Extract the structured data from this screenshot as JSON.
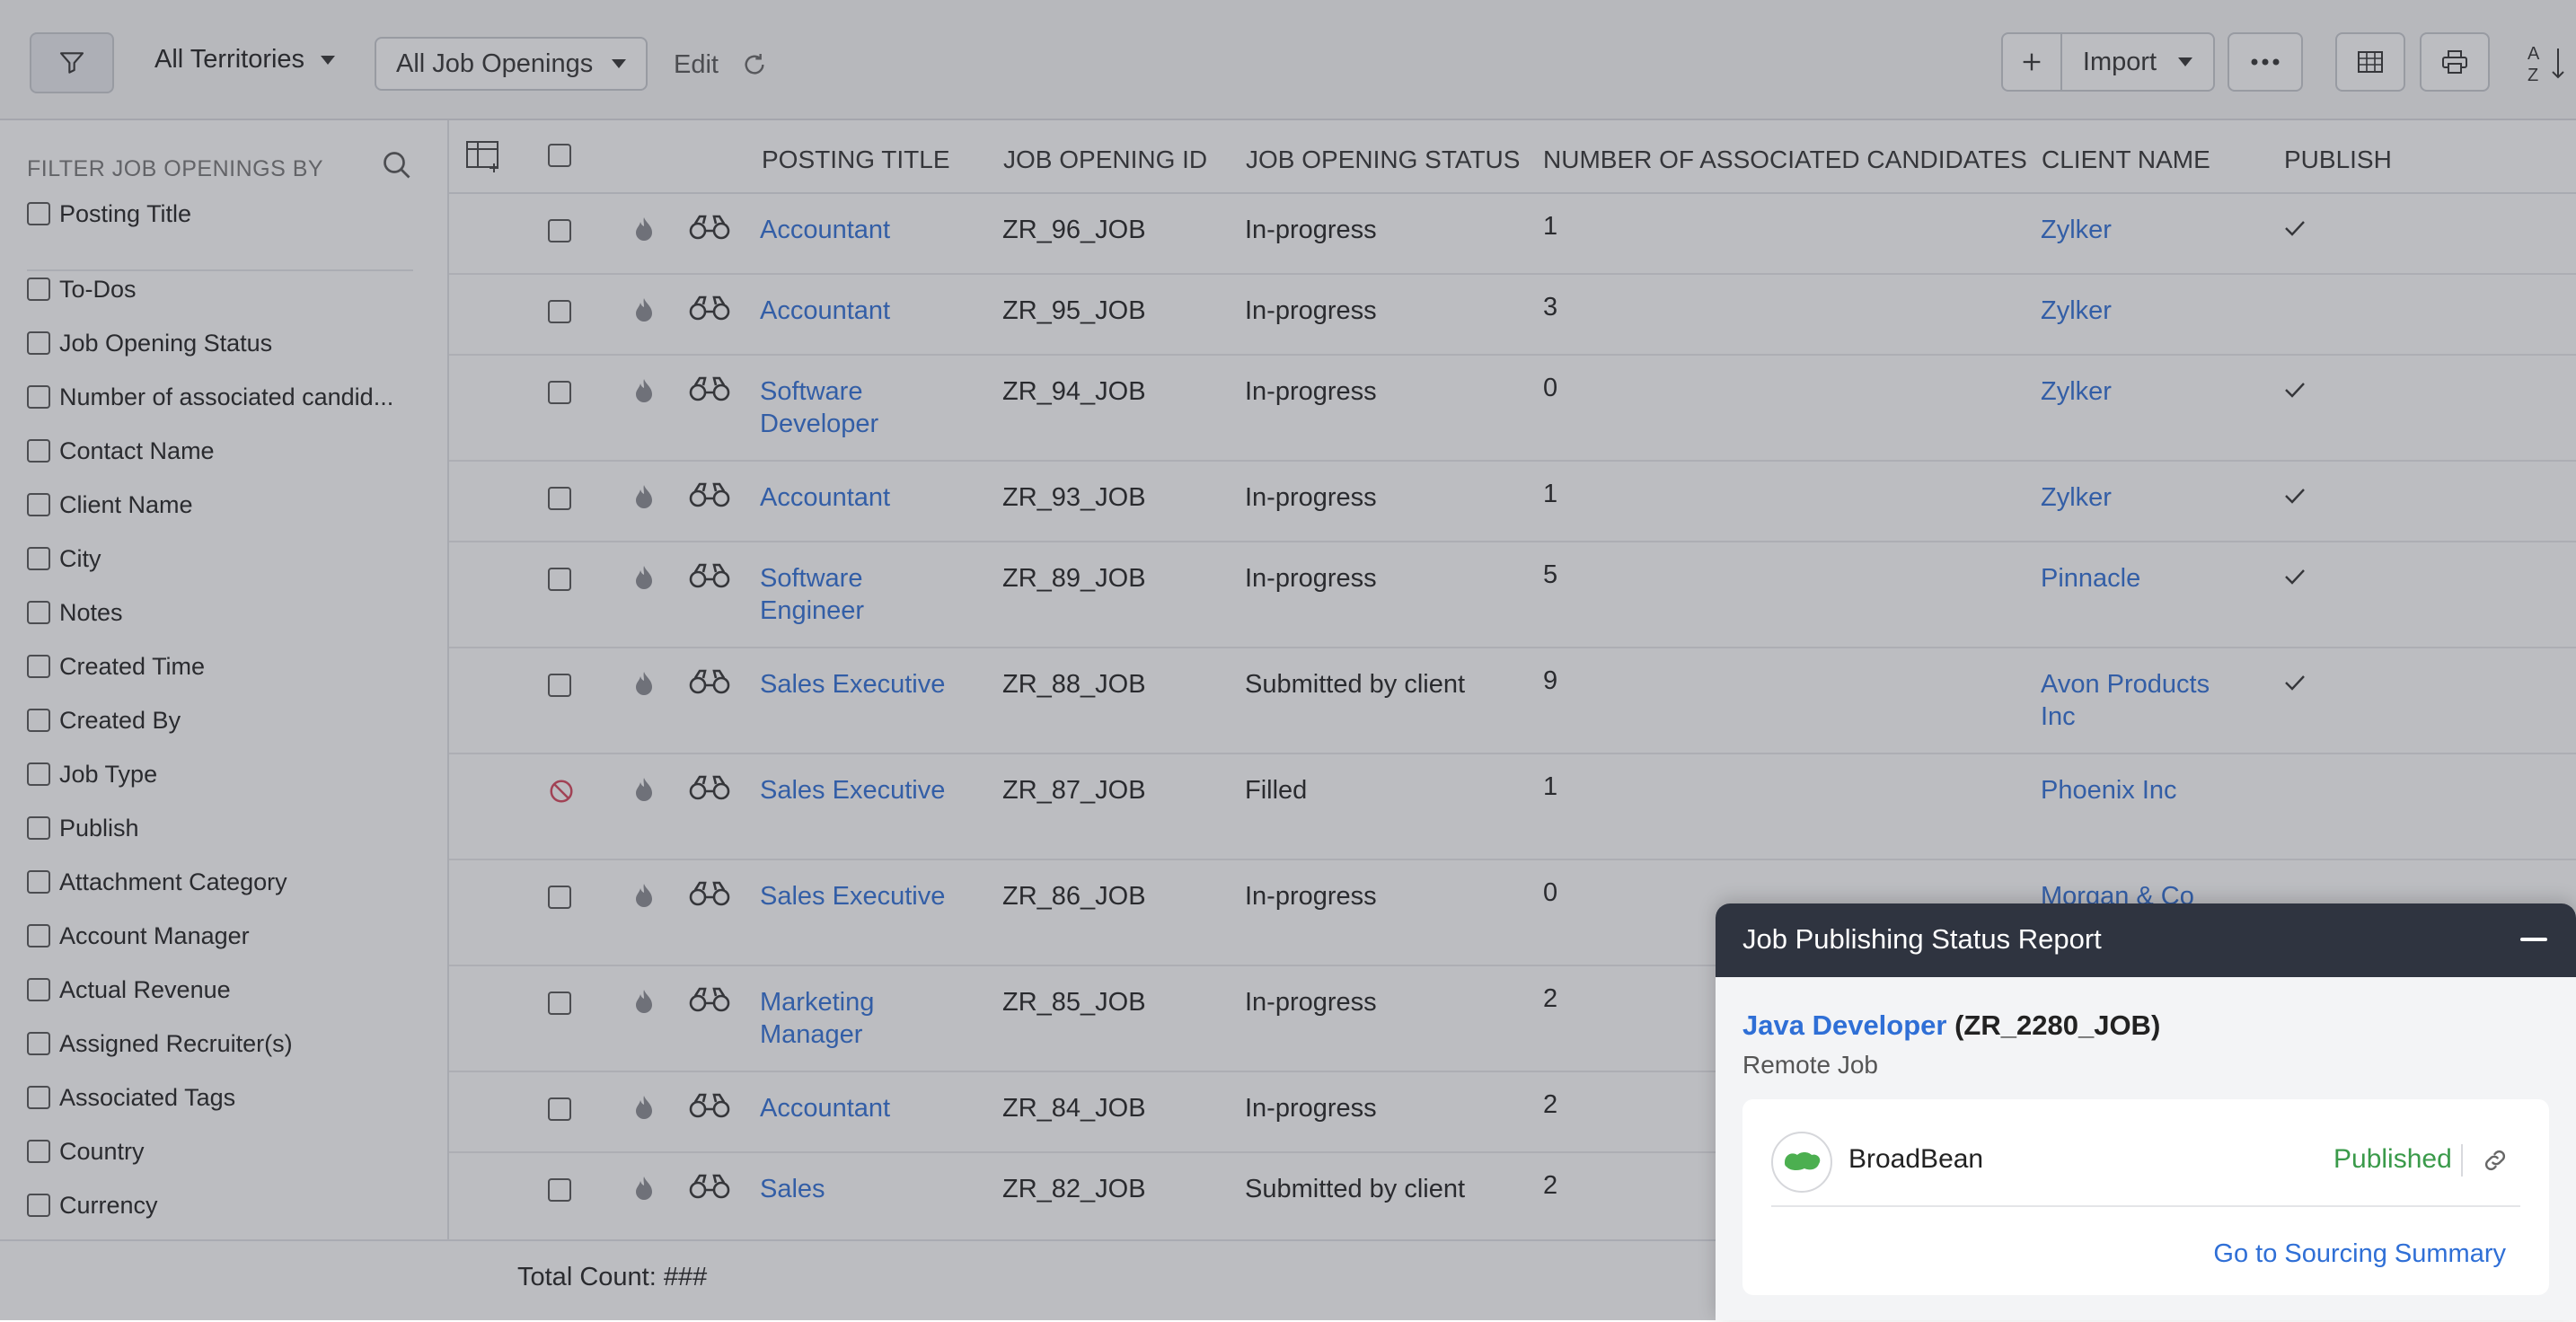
{
  "toolbar": {
    "territories_label": "All Territories",
    "views_label": "All Job Openings",
    "edit_label": "Edit",
    "import_label": "Import"
  },
  "sidebar": {
    "heading": "FILTER JOB OPENINGS BY",
    "items": [
      "Posting Title",
      "To-Dos",
      "Job Opening Status",
      "Number of associated candid...",
      "Contact Name",
      "Client Name",
      "City",
      "Notes",
      "Created Time",
      "Created By",
      "Job Type",
      "Publish",
      "Attachment Category",
      "Account Manager",
      "Actual Revenue",
      "Assigned Recruiter(s)",
      "Associated Tags",
      "Country",
      "Currency"
    ]
  },
  "table": {
    "columns": {
      "posting_title": "POSTING TITLE",
      "job_opening_id": "JOB OPENING ID",
      "status": "JOB OPENING STATUS",
      "num_candidates": "NUMBER OF ASSOCIATED CANDIDATES",
      "client_name": "CLIENT NAME",
      "publish": "PUBLISH"
    },
    "rows": [
      {
        "title": "Accountant",
        "id": "ZR_96_JOB",
        "status": "In-progress",
        "count": "1",
        "client": "Zylker",
        "published": true,
        "blocked": false
      },
      {
        "title": "Accountant",
        "id": "ZR_95_JOB",
        "status": "In-progress",
        "count": "3",
        "client": "Zylker",
        "published": false,
        "blocked": false
      },
      {
        "title": "Software Developer",
        "id": "ZR_94_JOB",
        "status": "In-progress",
        "count": "0",
        "client": "Zylker",
        "published": true,
        "blocked": false
      },
      {
        "title": "Accountant",
        "id": "ZR_93_JOB",
        "status": "In-progress",
        "count": "1",
        "client": "Zylker",
        "published": true,
        "blocked": false
      },
      {
        "title": "Software Engineer",
        "id": "ZR_89_JOB",
        "status": "In-progress",
        "count": "5",
        "client": "Pinnacle",
        "published": true,
        "blocked": false
      },
      {
        "title": "Sales Executive",
        "id": "ZR_88_JOB",
        "status": "Submitted by client",
        "count": "9",
        "client": "Avon Products Inc",
        "published": true,
        "blocked": false
      },
      {
        "title": "Sales Executive",
        "id": "ZR_87_JOB",
        "status": "Filled",
        "count": "1",
        "client": "Phoenix Inc",
        "published": false,
        "blocked": true
      },
      {
        "title": "Sales Executive",
        "id": "ZR_86_JOB",
        "status": "In-progress",
        "count": "0",
        "client": "Morgan & Co",
        "published": false,
        "blocked": false
      },
      {
        "title": "Marketing Manager",
        "id": "ZR_85_JOB",
        "status": "In-progress",
        "count": "2",
        "client": "",
        "published": false,
        "blocked": false
      },
      {
        "title": "Accountant",
        "id": "ZR_84_JOB",
        "status": "In-progress",
        "count": "2",
        "client": "",
        "published": false,
        "blocked": false
      },
      {
        "title": "Sales",
        "id": "ZR_82_JOB",
        "status": "Submitted by client",
        "count": "2",
        "client": "",
        "published": false,
        "blocked": false
      }
    ]
  },
  "footer": {
    "total_count": "Total Count: ###"
  },
  "popup": {
    "title": "Job Publishing Status Report",
    "job_title": "Java Developer",
    "job_id": "(ZR_2280_JOB)",
    "job_type": "Remote Job",
    "provider": "BroadBean",
    "status": "Published",
    "summary_link": "Go to Sourcing Summary"
  }
}
